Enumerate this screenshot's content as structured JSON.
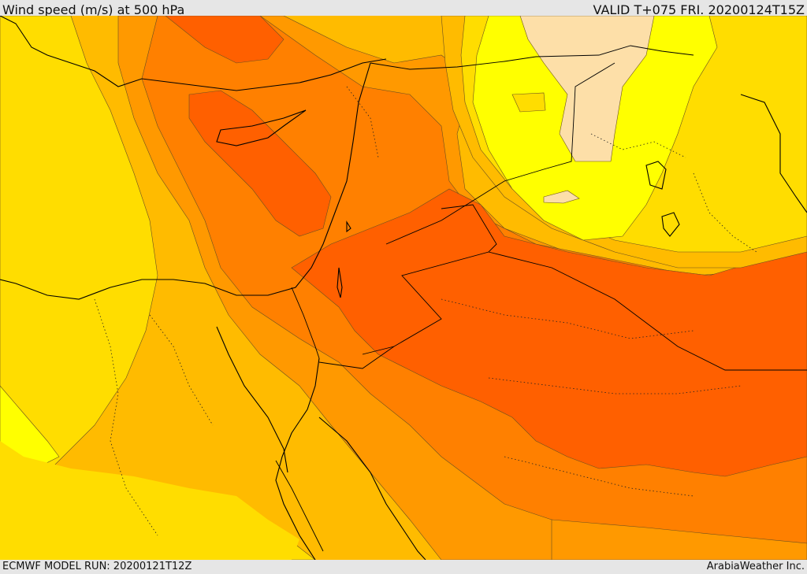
{
  "header": {
    "title": "Wind speed (m/s) at 500 hPa",
    "valid": "VALID T+075 FRI. 20200124T15Z"
  },
  "footer": {
    "model_run": "ECMWF MODEL RUN: 20200121T12Z",
    "credit": "ArabiaWeather Inc."
  },
  "colors": {
    "lightest": "#fddfa8",
    "yellow": "#ffff00",
    "gold": "#ffdd00",
    "amber": "#ffbb00",
    "orange": "#ff9900",
    "dark_orange": "#ff8000",
    "red_orange": "#ff6000"
  }
}
